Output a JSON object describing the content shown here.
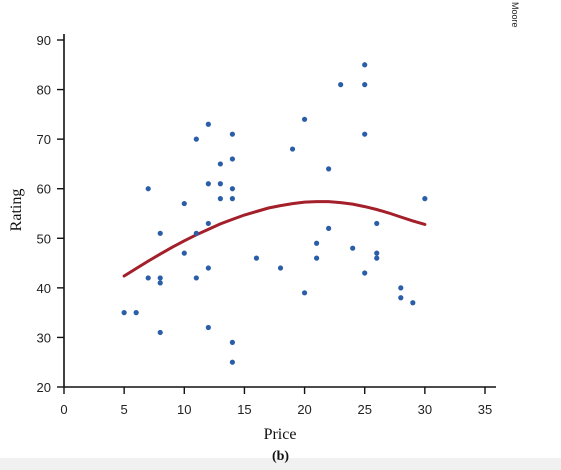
{
  "caption": "(b)",
  "side_note": "Moore",
  "chart_data": {
    "type": "scatter",
    "title": "",
    "xlabel": "Price",
    "ylabel": "Rating",
    "xlim": [
      0,
      35
    ],
    "ylim": [
      20,
      90
    ],
    "xticks": [
      0,
      5,
      10,
      15,
      20,
      25,
      30,
      35
    ],
    "yticks": [
      20,
      30,
      40,
      50,
      60,
      70,
      80,
      90
    ],
    "grid": false,
    "legend": "none",
    "point_color": "#2b5ea8",
    "curve_color": "#a31f2a",
    "series": [
      {
        "kind": "points",
        "x": [
          5,
          6,
          7,
          7,
          8,
          8,
          8,
          8,
          10,
          10,
          11,
          11,
          11,
          12,
          12,
          12,
          12,
          12,
          13,
          13,
          13,
          14,
          14,
          14,
          14,
          14,
          14,
          16,
          18,
          19,
          20,
          20,
          21,
          21,
          22,
          22,
          23,
          24,
          25,
          25,
          25,
          25,
          26,
          26,
          26,
          28,
          28,
          29,
          30
        ],
        "y": [
          35,
          35,
          60,
          42,
          51,
          42,
          41,
          31,
          57,
          47,
          70,
          51,
          42,
          73,
          61,
          53,
          44,
          32,
          65,
          61,
          58,
          71,
          66,
          60,
          58,
          29,
          25,
          46,
          44,
          68,
          74,
          39,
          49,
          46,
          64,
          52,
          81,
          48,
          85,
          81,
          71,
          43,
          53,
          47,
          46,
          40,
          38,
          37,
          58
        ]
      },
      {
        "kind": "fitted-curve",
        "x": [
          5,
          6,
          7,
          8,
          9,
          10,
          11,
          12,
          13,
          14,
          15,
          16,
          17,
          18,
          19,
          20,
          21,
          22,
          23,
          24,
          25,
          26,
          27,
          28,
          29,
          30
        ],
        "y": [
          42.4,
          43.9,
          45.4,
          46.8,
          48.2,
          49.5,
          50.7,
          51.8,
          52.9,
          53.8,
          54.7,
          55.4,
          56.1,
          56.6,
          57.0,
          57.3,
          57.4,
          57.4,
          57.2,
          56.9,
          56.4,
          55.8,
          55.1,
          54.3,
          53.5,
          52.8
        ]
      }
    ]
  }
}
